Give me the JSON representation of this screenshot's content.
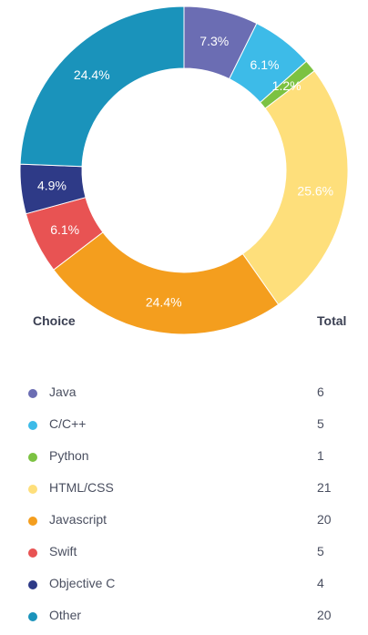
{
  "chart_data": {
    "type": "pie",
    "donut": true,
    "categories": [
      "Java",
      "C/C++",
      "Python",
      "HTML/CSS",
      "Javascript",
      "Swift",
      "Objective C",
      "Other"
    ],
    "values": [
      6,
      5,
      1,
      21,
      20,
      5,
      4,
      20
    ],
    "percent_labels": [
      "7.3%",
      "6.1%",
      "1.2%",
      "25.6%",
      "24.4%",
      "6.1%",
      "4.9%",
      "24.4%"
    ],
    "colors": [
      "#6b6db3",
      "#3dbbe8",
      "#7cc242",
      "#fedf7b",
      "#f49e1e",
      "#e85353",
      "#2e3a87",
      "#1a93bb"
    ],
    "start_angle_deg": 0,
    "direction": "clockwise"
  },
  "table": {
    "choice_header": "Choice",
    "total_header": "Total"
  }
}
